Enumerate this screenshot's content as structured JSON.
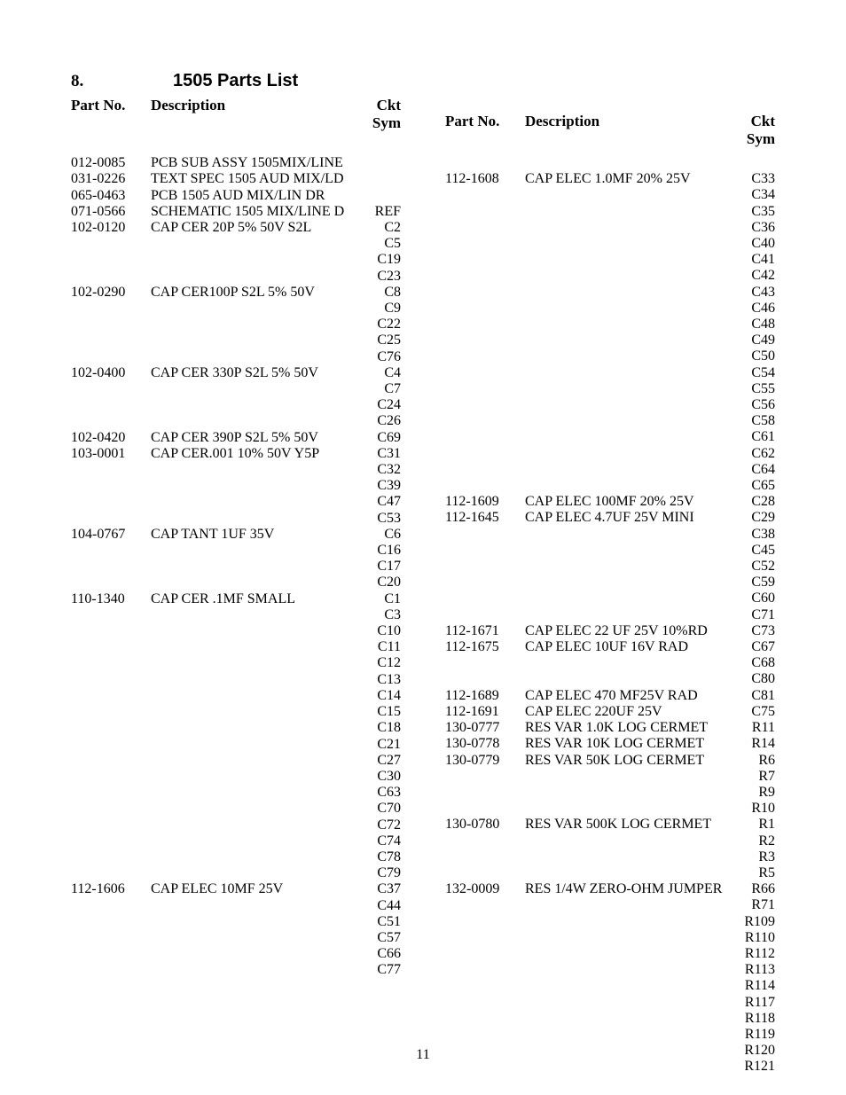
{
  "section_number": "8.",
  "title": "1505 Parts List",
  "page_number": "11",
  "headers": {
    "part": "Part No.",
    "desc": "Description",
    "sym_line1": "Ckt",
    "sym_line2": "Sym"
  },
  "left": [
    {
      "part": "012-0085",
      "desc": "PCB SUB ASSY 1505MIX/LINE",
      "sym": ""
    },
    {
      "part": "031-0226",
      "desc": "TEXT SPEC 1505 AUD MIX/LD",
      "sym": ""
    },
    {
      "part": "065-0463",
      "desc": "PCB 1505 AUD MIX/LIN DR",
      "sym": ""
    },
    {
      "part": "071-0566",
      "desc": "SCHEMATIC 1505 MIX/LINE D",
      "sym": "REF"
    },
    {
      "part": "102-0120",
      "desc": "CAP CER 20P 5% 50V S2L",
      "sym": "C2"
    },
    {
      "part": "",
      "desc": "",
      "sym": "C5"
    },
    {
      "part": "",
      "desc": "",
      "sym": "C19"
    },
    {
      "part": "",
      "desc": "",
      "sym": "C23"
    },
    {
      "part": "102-0290",
      "desc": "CAP CER100P S2L 5% 50V",
      "sym": "C8"
    },
    {
      "part": "",
      "desc": "",
      "sym": "C9"
    },
    {
      "part": "",
      "desc": "",
      "sym": "C22"
    },
    {
      "part": "",
      "desc": "",
      "sym": "C25"
    },
    {
      "part": "",
      "desc": "",
      "sym": "C76"
    },
    {
      "part": "102-0400",
      "desc": "CAP CER 330P S2L 5% 50V",
      "sym": "C4"
    },
    {
      "part": "",
      "desc": "",
      "sym": "C7"
    },
    {
      "part": "",
      "desc": "",
      "sym": "C24"
    },
    {
      "part": "",
      "desc": "",
      "sym": "C26"
    },
    {
      "part": "102-0420",
      "desc": "CAP CER 390P S2L 5% 50V",
      "sym": "C69"
    },
    {
      "part": "103-0001",
      "desc": "CAP CER.001 10% 50V Y5P",
      "sym": "C31"
    },
    {
      "part": "",
      "desc": "",
      "sym": "C32"
    },
    {
      "part": "",
      "desc": "",
      "sym": "C39"
    },
    {
      "part": "",
      "desc": "",
      "sym": "C47"
    },
    {
      "part": "",
      "desc": "",
      "sym": "C53"
    },
    {
      "part": "104-0767",
      "desc": "CAP TANT 1UF 35V",
      "sym": "C6"
    },
    {
      "part": "",
      "desc": "",
      "sym": "C16"
    },
    {
      "part": "",
      "desc": "",
      "sym": "C17"
    },
    {
      "part": "",
      "desc": "",
      "sym": "C20"
    },
    {
      "part": "110-1340",
      "desc": "CAP CER .1MF SMALL",
      "sym": "C1"
    },
    {
      "part": "",
      "desc": "",
      "sym": "C3"
    },
    {
      "part": "",
      "desc": "",
      "sym": "C10"
    },
    {
      "part": "",
      "desc": "",
      "sym": "C11"
    },
    {
      "part": "",
      "desc": "",
      "sym": "C12"
    },
    {
      "part": "",
      "desc": "",
      "sym": "C13"
    },
    {
      "part": "",
      "desc": "",
      "sym": "C14"
    },
    {
      "part": "",
      "desc": "",
      "sym": "C15"
    },
    {
      "part": "",
      "desc": "",
      "sym": "C18"
    },
    {
      "part": "",
      "desc": "",
      "sym": "C21"
    },
    {
      "part": "",
      "desc": "",
      "sym": "C27"
    },
    {
      "part": "",
      "desc": "",
      "sym": "C30"
    },
    {
      "part": "",
      "desc": "",
      "sym": "C63"
    },
    {
      "part": "",
      "desc": "",
      "sym": "C70"
    },
    {
      "part": "",
      "desc": "",
      "sym": "C72"
    },
    {
      "part": "",
      "desc": "",
      "sym": "C74"
    },
    {
      "part": "",
      "desc": "",
      "sym": "C78"
    },
    {
      "part": "",
      "desc": "",
      "sym": "C79"
    },
    {
      "part": "112-1606",
      "desc": "CAP ELEC 10MF 25V",
      "sym": "C37"
    },
    {
      "part": "",
      "desc": "",
      "sym": "C44"
    },
    {
      "part": "",
      "desc": "",
      "sym": "C51"
    },
    {
      "part": "",
      "desc": "",
      "sym": "C57"
    },
    {
      "part": "",
      "desc": "",
      "sym": "C66"
    },
    {
      "part": "",
      "desc": "",
      "sym": "C77"
    }
  ],
  "right": [
    {
      "part": "112-1608",
      "desc": "CAP ELEC 1.0MF 20% 25V",
      "sym": "C33"
    },
    {
      "part": "",
      "desc": "",
      "sym": "C34"
    },
    {
      "part": "",
      "desc": "",
      "sym": "C35"
    },
    {
      "part": "",
      "desc": "",
      "sym": "C36"
    },
    {
      "part": "",
      "desc": "",
      "sym": "C40"
    },
    {
      "part": "",
      "desc": "",
      "sym": "C41"
    },
    {
      "part": "",
      "desc": "",
      "sym": "C42"
    },
    {
      "part": "",
      "desc": "",
      "sym": "C43"
    },
    {
      "part": "",
      "desc": "",
      "sym": "C46"
    },
    {
      "part": "",
      "desc": "",
      "sym": "C48"
    },
    {
      "part": "",
      "desc": "",
      "sym": "C49"
    },
    {
      "part": "",
      "desc": "",
      "sym": "C50"
    },
    {
      "part": "",
      "desc": "",
      "sym": "C54"
    },
    {
      "part": "",
      "desc": "",
      "sym": "C55"
    },
    {
      "part": "",
      "desc": "",
      "sym": "C56"
    },
    {
      "part": "",
      "desc": "",
      "sym": "C58"
    },
    {
      "part": "",
      "desc": "",
      "sym": "C61"
    },
    {
      "part": "",
      "desc": "",
      "sym": "C62"
    },
    {
      "part": "",
      "desc": "",
      "sym": "C64"
    },
    {
      "part": "",
      "desc": "",
      "sym": "C65"
    },
    {
      "part": "112-1609",
      "desc": "CAP ELEC 100MF 20% 25V",
      "sym": "C28"
    },
    {
      "part": "112-1645",
      "desc": "CAP ELEC 4.7UF 25V MINI",
      "sym": "C29"
    },
    {
      "part": "",
      "desc": "",
      "sym": "C38"
    },
    {
      "part": "",
      "desc": "",
      "sym": "C45"
    },
    {
      "part": "",
      "desc": "",
      "sym": "C52"
    },
    {
      "part": "",
      "desc": "",
      "sym": "C59"
    },
    {
      "part": "",
      "desc": "",
      "sym": "C60"
    },
    {
      "part": "",
      "desc": "",
      "sym": "C71"
    },
    {
      "part": "112-1671",
      "desc": "CAP ELEC 22 UF 25V 10%RD",
      "sym": "C73"
    },
    {
      "part": "112-1675",
      "desc": "CAP ELEC 10UF 16V RAD",
      "sym": "C67"
    },
    {
      "part": "",
      "desc": "",
      "sym": "C68"
    },
    {
      "part": "",
      "desc": "",
      "sym": "C80"
    },
    {
      "part": "112-1689",
      "desc": "CAP ELEC 470 MF25V RAD",
      "sym": "C81"
    },
    {
      "part": "112-1691",
      "desc": "CAP ELEC 220UF 25V",
      "sym": "C75"
    },
    {
      "part": "130-0777",
      "desc": "RES VAR 1.0K LOG CERMET",
      "sym": "R11"
    },
    {
      "part": "130-0778",
      "desc": "RES VAR 10K LOG CERMET",
      "sym": "R14"
    },
    {
      "part": "130-0779",
      "desc": "RES VAR 50K LOG CERMET",
      "sym": "R6"
    },
    {
      "part": "",
      "desc": "",
      "sym": "R7"
    },
    {
      "part": "",
      "desc": "",
      "sym": "R9"
    },
    {
      "part": "",
      "desc": "",
      "sym": "R10"
    },
    {
      "part": "130-0780",
      "desc": "RES VAR 500K LOG CERMET",
      "sym": "R1"
    },
    {
      "part": "",
      "desc": "",
      "sym": "R2"
    },
    {
      "part": "",
      "desc": "",
      "sym": "R3"
    },
    {
      "part": "",
      "desc": "",
      "sym": "R5"
    },
    {
      "part": "132-0009",
      "desc": "RES 1/4W ZERO-OHM JUMPER",
      "sym": "R66"
    },
    {
      "part": "",
      "desc": "",
      "sym": "R71"
    },
    {
      "part": "",
      "desc": "",
      "sym": "R109"
    },
    {
      "part": "",
      "desc": "",
      "sym": "R110"
    },
    {
      "part": "",
      "desc": "",
      "sym": "R112"
    },
    {
      "part": "",
      "desc": "",
      "sym": "R113"
    },
    {
      "part": "",
      "desc": "",
      "sym": "R114"
    },
    {
      "part": "",
      "desc": "",
      "sym": "R117"
    },
    {
      "part": "",
      "desc": "",
      "sym": "R118"
    },
    {
      "part": "",
      "desc": "",
      "sym": "R119"
    },
    {
      "part": "",
      "desc": "",
      "sym": "R120"
    },
    {
      "part": "",
      "desc": "",
      "sym": "R121"
    }
  ]
}
